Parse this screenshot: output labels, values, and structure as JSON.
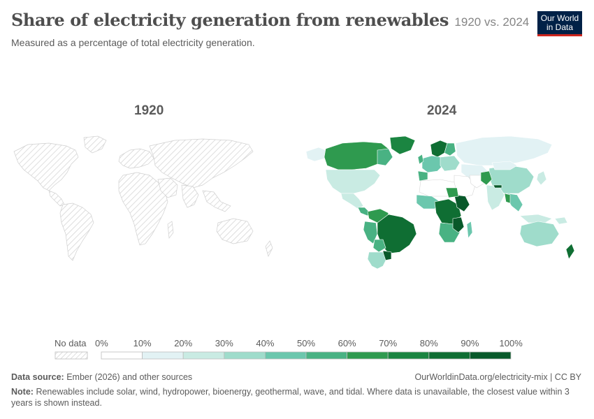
{
  "header": {
    "title": "Share of electricity generation from renewables",
    "title_years": "1920 vs. 2024",
    "subtitle": "Measured as a percentage of total electricity generation."
  },
  "logo": {
    "line1": "Our World",
    "line2": "in Data"
  },
  "maps": [
    {
      "year_label": "1920",
      "data_state": "no data"
    },
    {
      "year_label": "2024",
      "data_state": "filled"
    }
  ],
  "legend": {
    "no_data_label": "No data",
    "ticks": [
      "0%",
      "10%",
      "20%",
      "30%",
      "40%",
      "50%",
      "60%",
      "70%",
      "80%",
      "90%",
      "100%"
    ],
    "bin_colors": [
      "#ffffff",
      "#e2f2f4",
      "#c9ebe3",
      "#9fdccb",
      "#6bc7ad",
      "#49b283",
      "#2f9a4f",
      "#1b8541",
      "#0f6e33",
      "#08592a"
    ]
  },
  "chart_data": {
    "type": "choropleth",
    "metric": "Share of electricity generation from renewables",
    "unit": "%",
    "scale_bins": [
      0,
      10,
      20,
      30,
      40,
      50,
      60,
      70,
      80,
      90,
      100
    ],
    "panels": [
      {
        "year": "1920",
        "regions": "all countries: No data"
      },
      {
        "year": "2024",
        "regions_estimated": [
          {
            "region": "Canada",
            "bin": "60-70%"
          },
          {
            "region": "United States",
            "bin": "20-30%"
          },
          {
            "region": "Brazil",
            "bin": "80-90%"
          },
          {
            "region": "Paraguay",
            "bin": "90-100%"
          },
          {
            "region": "Argentina",
            "bin": "30-40%"
          },
          {
            "region": "Norway",
            "bin": "90-100%"
          },
          {
            "region": "Russia",
            "bin": "10-20%"
          },
          {
            "region": "China",
            "bin": "30-40%"
          },
          {
            "region": "India",
            "bin": "20-30%"
          },
          {
            "region": "Australia",
            "bin": "30-40%"
          },
          {
            "region": "New Zealand",
            "bin": "80-90%"
          },
          {
            "region": "Ethiopia",
            "bin": "90-100%"
          },
          {
            "region": "DR Congo",
            "bin": "90-100%"
          },
          {
            "region": "North Africa / Middle East",
            "bin": "0-10%"
          }
        ]
      }
    ]
  },
  "footer": {
    "source_label": "Data source:",
    "source_text": "Ember (2026) and other sources",
    "url": "OurWorldinData.org/electricity-mix | CC BY",
    "note_label": "Note:",
    "note_text": "Renewables include solar, wind, hydropower, bioenergy, geothermal, wave, and tidal. Where data is unavailable, the closest value within 3 years is shown instead."
  }
}
